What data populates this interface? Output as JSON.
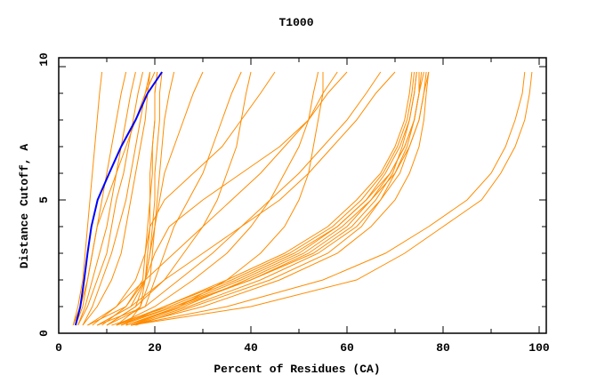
{
  "chart_data": {
    "type": "line",
    "title": "T1000",
    "xlabel": "Percent of Residues (CA)",
    "ylabel": "Distance Cutoff, A",
    "xlim": [
      0,
      100
    ],
    "ylim": [
      0,
      10
    ],
    "x_ticks": [
      "0",
      "20",
      "40",
      "60",
      "80",
      "100"
    ],
    "y_ticks": [
      "0",
      "5",
      "10"
    ],
    "grid": false,
    "colors": {
      "highlight": "#0000ff",
      "others": "#ff8c00"
    },
    "y_levels": [
      0.3,
      1,
      2,
      3,
      4,
      5,
      6,
      7,
      8,
      9,
      9.8
    ],
    "series": [
      {
        "x": [
          3,
          4,
          5,
          5.5,
          6,
          6.5,
          7,
          7.5,
          8,
          8.5,
          9
        ]
      },
      {
        "x": [
          3.5,
          5,
          6,
          7,
          8,
          9,
          10,
          11,
          12,
          13,
          14
        ]
      },
      {
        "x": [
          4,
          5.5,
          7,
          8.5,
          10,
          11,
          12,
          13,
          14,
          15,
          16
        ]
      },
      {
        "x": [
          4,
          6,
          8,
          10,
          11,
          12,
          13.5,
          14.5,
          15.5,
          16.5,
          17.5
        ]
      },
      {
        "x": [
          5,
          7,
          9,
          11,
          12.5,
          14,
          15,
          16,
          17,
          18,
          19
        ]
      },
      {
        "x": [
          3,
          4.5,
          6,
          7,
          8,
          10,
          12,
          14,
          16,
          18,
          20
        ]
      },
      {
        "x": [
          5,
          8,
          11,
          13,
          14,
          15,
          16,
          17,
          18,
          18.5,
          19
        ]
      },
      {
        "x": [
          14,
          17,
          18,
          18.5,
          19,
          19,
          19.5,
          19.5,
          20,
          20,
          20.5
        ]
      },
      {
        "x": [
          8,
          15,
          18,
          19,
          19.5,
          20,
          20,
          20.5,
          21,
          21,
          21.5
        ]
      },
      {
        "x": [
          12,
          17,
          19,
          19.5,
          20,
          20.5,
          21,
          21.5,
          22,
          23,
          24
        ]
      },
      {
        "x": [
          10,
          16,
          18,
          19,
          20,
          21,
          22,
          24,
          26,
          28,
          30
        ]
      },
      {
        "x": [
          6,
          14,
          17.5,
          18,
          18.5,
          19,
          19,
          19.5,
          20,
          20,
          20.5
        ]
      },
      {
        "x": [
          8,
          18,
          20,
          22,
          24,
          27,
          30,
          32,
          34,
          36,
          38
        ]
      },
      {
        "x": [
          10,
          16,
          22,
          26,
          30,
          33,
          35,
          37,
          38,
          39,
          40
        ]
      },
      {
        "x": [
          12,
          20,
          28,
          35,
          40,
          44,
          47,
          50,
          52,
          53,
          54
        ]
      },
      {
        "x": [
          15,
          25,
          35,
          42,
          47,
          50,
          52,
          53,
          54,
          55,
          55
        ]
      },
      {
        "x": [
          10,
          18,
          25,
          32,
          38,
          44,
          50,
          55,
          60,
          64,
          67
        ]
      },
      {
        "x": [
          8,
          15,
          22,
          30,
          38,
          46,
          52,
          57,
          62,
          66,
          70
        ]
      },
      {
        "x": [
          6,
          12,
          18,
          24,
          30,
          36,
          42,
          47,
          52,
          55,
          58
        ]
      },
      {
        "x": [
          14,
          25,
          40,
          52,
          60,
          65,
          69,
          72,
          74,
          75,
          75.5
        ]
      },
      {
        "x": [
          12,
          24,
          38,
          50,
          58,
          64,
          68,
          71,
          73,
          74,
          74.5
        ]
      },
      {
        "x": [
          15,
          27,
          42,
          54,
          62,
          67,
          70,
          72.5,
          74,
          75,
          76
        ]
      },
      {
        "x": [
          13,
          22,
          36,
          48,
          57,
          63,
          67.5,
          70.5,
          72.5,
          73.5,
          74
        ]
      },
      {
        "x": [
          16,
          28,
          44,
          56,
          63,
          67,
          71,
          73,
          75,
          76,
          76.5
        ]
      },
      {
        "x": [
          11,
          23,
          37,
          49,
          58,
          64,
          69,
          72,
          74,
          75,
          75
        ]
      },
      {
        "x": [
          14,
          26,
          39,
          51,
          59,
          65,
          70,
          73,
          75,
          76,
          77
        ]
      },
      {
        "x": [
          13,
          24,
          40,
          53,
          61,
          66,
          69.5,
          71.5,
          73,
          74,
          74.5
        ]
      },
      {
        "x": [
          15,
          30,
          46,
          58,
          65,
          70,
          73,
          75,
          76,
          76.5,
          77
        ]
      },
      {
        "x": [
          12,
          22,
          35,
          47,
          56,
          62,
          67,
          70,
          72,
          73,
          73.5
        ]
      },
      {
        "x": [
          15,
          40,
          62,
          72,
          80,
          88,
          92,
          95,
          97,
          98,
          98.5
        ]
      },
      {
        "x": [
          15,
          35,
          55,
          68,
          77,
          85,
          90,
          93,
          95,
          96.5,
          97
        ]
      },
      {
        "x": [
          9,
          14,
          18,
          20,
          23,
          30,
          38,
          46,
          52,
          56,
          60
        ]
      },
      {
        "x": [
          7,
          12,
          16,
          18,
          19,
          22,
          28,
          34,
          38,
          42,
          45
        ]
      }
    ],
    "highlight_series": {
      "x": [
        3.5,
        4.5,
        5.3,
        6,
        6.8,
        8.1,
        10.5,
        13,
        16,
        18.5,
        21.5
      ]
    }
  }
}
